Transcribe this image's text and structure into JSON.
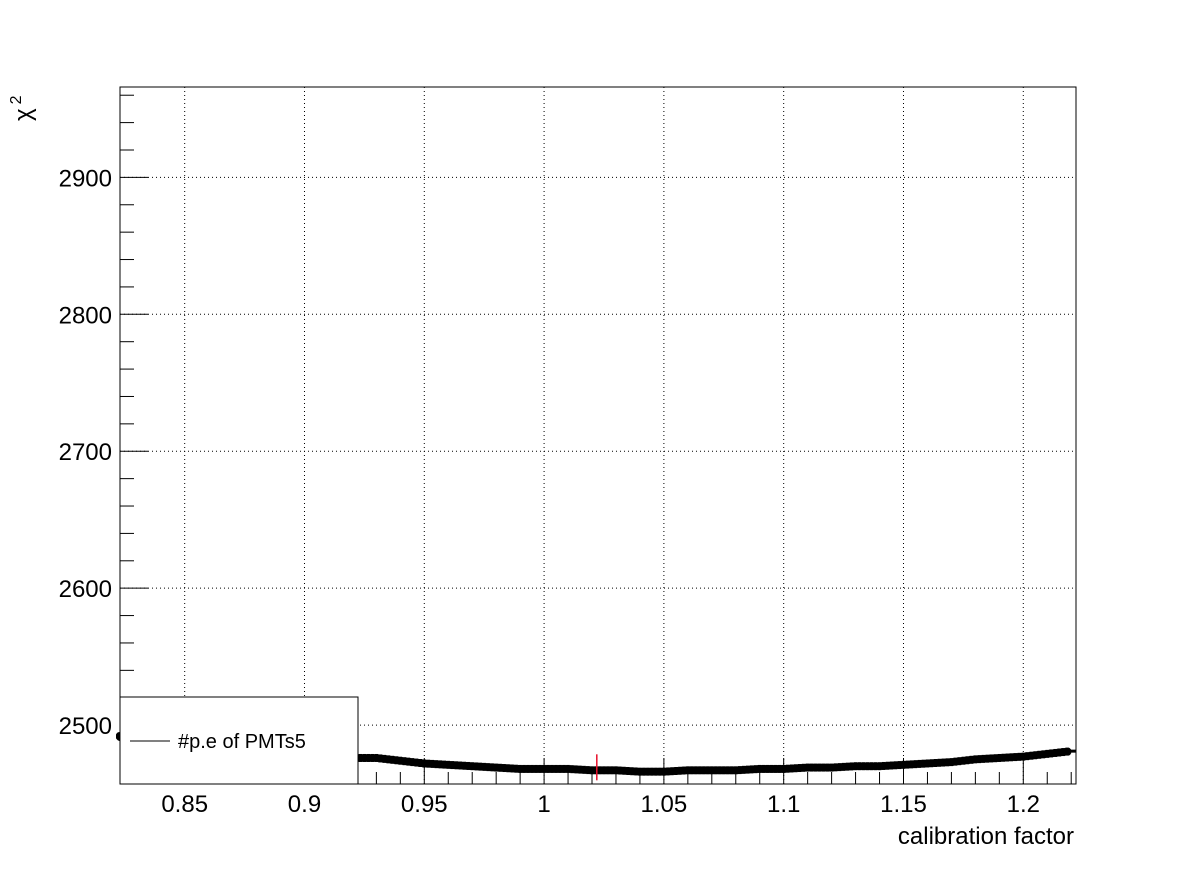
{
  "chart_data": {
    "type": "scatter",
    "title": "",
    "xlabel": "calibration factor",
    "ylabel": "χ²",
    "ylabel_base": "χ",
    "ylabel_sup": "2",
    "xlim": [
      0.823,
      1.222
    ],
    "ylim": [
      2457,
      2966
    ],
    "x_ticks": [
      0.85,
      0.9,
      0.95,
      1.0,
      1.05,
      1.1,
      1.15,
      1.2
    ],
    "x_tick_labels": [
      "0.85",
      "0.9",
      "0.95",
      "1",
      "1.05",
      "1.1",
      "1.15",
      "1.2"
    ],
    "y_ticks": [
      2500,
      2600,
      2700,
      2800,
      2900
    ],
    "y_tick_labels": [
      "2500",
      "2600",
      "2700",
      "2800",
      "2900"
    ],
    "grid": true,
    "legend_position": "bottom-left",
    "series": [
      {
        "name": "#p.e of PMTs5",
        "marker": "star",
        "color": "#000000",
        "x": [
          0.82,
          0.83,
          0.84,
          0.85,
          0.86,
          0.87,
          0.88,
          0.89,
          0.9,
          0.91,
          0.92,
          0.93,
          0.94,
          0.95,
          0.96,
          0.97,
          0.98,
          0.99,
          1.0,
          1.01,
          1.02,
          1.03,
          1.04,
          1.05,
          1.06,
          1.07,
          1.08,
          1.09,
          1.1,
          1.11,
          1.12,
          1.13,
          1.14,
          1.15,
          1.16,
          1.17,
          1.18,
          1.19,
          1.2,
          1.21,
          1.22
        ],
        "y": [
          2492,
          2490,
          2488,
          2486,
          2484,
          2482,
          2480,
          2479,
          2478,
          2477,
          2476,
          2476,
          2474,
          2472,
          2471,
          2470,
          2469,
          2468,
          2468,
          2468,
          2467,
          2467,
          2466,
          2466,
          2467,
          2467,
          2467,
          2468,
          2468,
          2469,
          2469,
          2470,
          2470,
          2471,
          2472,
          2473,
          2475,
          2476,
          2477,
          2479,
          2481
        ]
      }
    ],
    "fit_curve": {
      "color": "#1f2a8c",
      "x": [
        0.97,
        0.98,
        0.99,
        1.0,
        1.01,
        1.02,
        1.03,
        1.04,
        1.05,
        1.06,
        1.07
      ],
      "y": [
        2469,
        2468.5,
        2468,
        2467.6,
        2467.3,
        2467.1,
        2467.0,
        2467.1,
        2467.3,
        2467.6,
        2468
      ]
    },
    "minimum_marker": {
      "color": "#e8102a",
      "x": 1.022,
      "y": 2467
    }
  }
}
